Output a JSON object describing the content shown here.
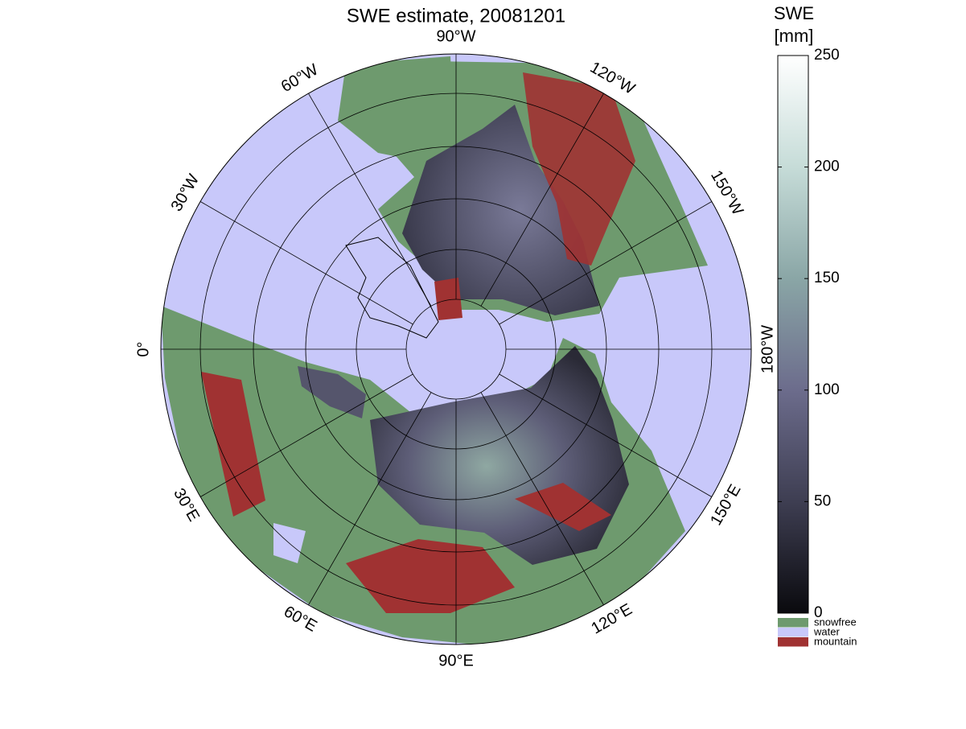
{
  "title": "SWE estimate, 20081201",
  "longitude_labels": [
    "0°",
    "30°E",
    "60°E",
    "90°E",
    "120°E",
    "150°E",
    "180°W",
    "150°W",
    "120°W",
    "90°W",
    "60°W",
    "30°W"
  ],
  "colorbar": {
    "label": [
      "SWE",
      "[mm]"
    ],
    "lim": [
      0,
      250
    ],
    "ticks": [
      0,
      50,
      100,
      150,
      200,
      250
    ],
    "colors": [
      "#0a0a0e",
      "#3e3e52",
      "#6c6c8c",
      "#8aa6a6",
      "#c6dcd8",
      "#ffffff"
    ]
  },
  "legend": [
    {
      "label": "snowfree",
      "color": "#6e9a6e"
    },
    {
      "label": "water",
      "color": "#c8c8fa"
    },
    {
      "label": "mountain",
      "color": "#a03232"
    }
  ]
}
